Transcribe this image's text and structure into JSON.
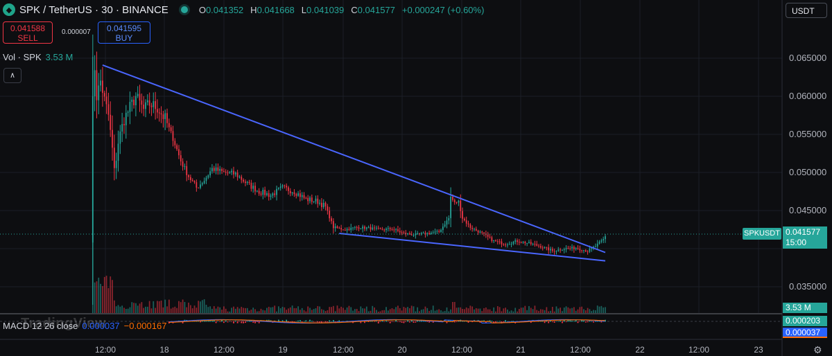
{
  "header": {
    "pair_title": "SPK / TetherUS · 30 · BINANCE",
    "logo_icon": "spk-logo-icon",
    "ohlc": [
      {
        "k": "O",
        "v": "0.041352"
      },
      {
        "k": "H",
        "v": "0.041668"
      },
      {
        "k": "L",
        "v": "0.041039"
      },
      {
        "k": "C",
        "v": "0.041577"
      },
      {
        "k": "",
        "v": "+0.000247 (+0.60%)"
      }
    ]
  },
  "trade": {
    "sell_price": "0.041588",
    "sell_label": "SELL",
    "spread": "0.000007",
    "buy_price": "0.041595",
    "buy_label": "BUY"
  },
  "volume": {
    "label": "Vol · SPK",
    "value": "3.53 M",
    "axis_value": "3.53 M"
  },
  "currency": "USDT",
  "last": {
    "symbol": "SPKUSDT",
    "price": "0.041577",
    "countdown": "15:00"
  },
  "macd": {
    "label": "MACD 12 26 close",
    "value1": "0.000037",
    "value2": "−0.000167",
    "axis1": "0.000203",
    "axis2": "0.000037"
  },
  "watermark": "TradingView",
  "colors": {
    "up": "#26a69a",
    "down": "#f23645",
    "trendline": "#4a66ff",
    "background": "#0d0e11"
  },
  "chart_data": {
    "type": "candlestick",
    "timeframe": "30",
    "y_ticks": [
      "0.065000",
      "0.060000",
      "0.055000",
      "0.050000",
      "0.045000",
      "0.035000"
    ],
    "ylim": [
      0.0325,
      0.0675
    ],
    "x_ticks": [
      "12:00",
      "18",
      "12:00",
      "19",
      "12:00",
      "20",
      "12:00",
      "21",
      "12:00",
      "22",
      "12:00",
      "23"
    ],
    "price_path": [
      [
        0,
        0.0408
      ],
      [
        1,
        0.061
      ],
      [
        2,
        0.0638
      ],
      [
        3,
        0.06
      ],
      [
        5,
        0.062
      ],
      [
        7,
        0.0595
      ],
      [
        9,
        0.0575
      ],
      [
        11,
        0.053
      ],
      [
        12,
        0.05
      ],
      [
        14,
        0.054
      ],
      [
        17,
        0.057
      ],
      [
        20,
        0.0585
      ],
      [
        23,
        0.06
      ],
      [
        27,
        0.0582
      ],
      [
        30,
        0.059
      ],
      [
        34,
        0.0585
      ],
      [
        38,
        0.057
      ],
      [
        42,
        0.0545
      ],
      [
        46,
        0.0515
      ],
      [
        50,
        0.0495
      ],
      [
        54,
        0.048
      ],
      [
        58,
        0.049
      ],
      [
        62,
        0.0505
      ],
      [
        68,
        0.05
      ],
      [
        74,
        0.0498
      ],
      [
        80,
        0.0485
      ],
      [
        86,
        0.0475
      ],
      [
        92,
        0.047
      ],
      [
        98,
        0.048
      ],
      [
        104,
        0.0475
      ],
      [
        110,
        0.0465
      ],
      [
        116,
        0.0462
      ],
      [
        120,
        0.0455
      ],
      [
        124,
        0.0428
      ],
      [
        130,
        0.0425
      ],
      [
        136,
        0.0428
      ],
      [
        142,
        0.0427
      ],
      [
        148,
        0.0425
      ],
      [
        154,
        0.0426
      ],
      [
        160,
        0.042
      ],
      [
        166,
        0.0418
      ],
      [
        172,
        0.042
      ],
      [
        178,
        0.0422
      ],
      [
        183,
        0.044
      ],
      [
        184,
        0.0468
      ],
      [
        186,
        0.046
      ],
      [
        188,
        0.0462
      ],
      [
        190,
        0.044
      ],
      [
        194,
        0.0428
      ],
      [
        200,
        0.042
      ],
      [
        206,
        0.041
      ],
      [
        212,
        0.0406
      ],
      [
        218,
        0.041
      ],
      [
        224,
        0.0407
      ],
      [
        230,
        0.0403
      ],
      [
        236,
        0.0397
      ],
      [
        242,
        0.04
      ],
      [
        248,
        0.0401
      ],
      [
        254,
        0.0397
      ],
      [
        258,
        0.0403
      ],
      [
        262,
        0.0412
      ],
      [
        263,
        0.0416
      ]
    ],
    "trendlines": [
      {
        "name": "",
        "points": [
          [
            6,
            0.0641
          ],
          [
            263,
            0.0395
          ]
        ]
      },
      {
        "name": "",
        "points": [
          [
            127,
            0.042
          ],
          [
            263,
            0.0384
          ]
        ]
      }
    ],
    "volume_max": 3.53,
    "total_bars": 263
  }
}
